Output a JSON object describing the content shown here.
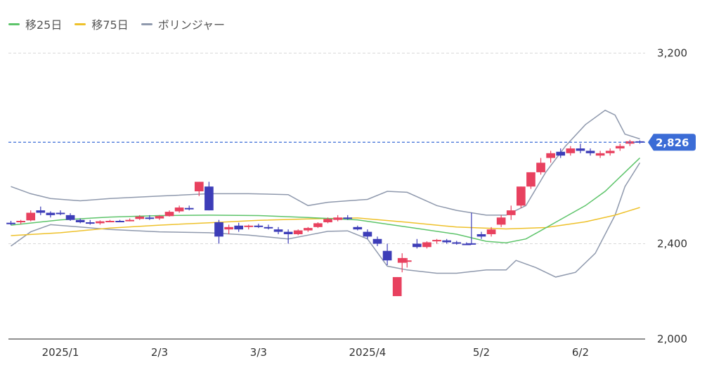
{
  "legend": [
    {
      "label": "移25日",
      "color": "#5dc46a"
    },
    {
      "label": "移75日",
      "color": "#eec12a"
    },
    {
      "label": "ボリンジャー",
      "color": "#8f99ad"
    }
  ],
  "current_price_label": "2,826",
  "colors": {
    "up": "#e8415f",
    "down": "#3d3db8",
    "price_line": "#3b6cd6",
    "grid": "#d9d9d9"
  },
  "chart_data": {
    "type": "candlestick",
    "title": "",
    "y_ticks": [
      {
        "value": 2000,
        "label": "2,000"
      },
      {
        "value": 2400,
        "label": "2,400"
      },
      {
        "value": 3200,
        "label": "3,200"
      }
    ],
    "ylim": [
      2000,
      3240
    ],
    "x_ticks": [
      {
        "index": 10,
        "label": "2025/1"
      },
      {
        "index": 30,
        "label": "2/3"
      },
      {
        "index": 50,
        "label": "3/3"
      },
      {
        "index": 72,
        "label": "2025/4"
      },
      {
        "index": 95,
        "label": "5/2"
      },
      {
        "index": 115,
        "label": "6/2"
      }
    ],
    "n_bars": 128,
    "current_price": 2826,
    "candles_sample": [
      [
        0,
        2488,
        2496,
        2478,
        2482
      ],
      [
        2,
        2492,
        2500,
        2482,
        2496
      ],
      [
        4,
        2498,
        2540,
        2494,
        2530
      ],
      [
        6,
        2540,
        2556,
        2520,
        2530
      ],
      [
        8,
        2530,
        2536,
        2510,
        2520
      ],
      [
        10,
        2530,
        2540,
        2520,
        2526
      ],
      [
        12,
        2520,
        2528,
        2496,
        2500
      ],
      [
        14,
        2500,
        2506,
        2486,
        2490
      ],
      [
        16,
        2490,
        2500,
        2480,
        2484
      ],
      [
        18,
        2486,
        2498,
        2480,
        2494
      ],
      [
        20,
        2494,
        2500,
        2490,
        2496
      ],
      [
        22,
        2496,
        2500,
        2492,
        2494
      ],
      [
        24,
        2498,
        2506,
        2494,
        2500
      ],
      [
        26,
        2504,
        2520,
        2500,
        2514
      ],
      [
        28,
        2510,
        2520,
        2500,
        2506
      ],
      [
        30,
        2506,
        2520,
        2500,
        2516
      ],
      [
        32,
        2516,
        2540,
        2514,
        2534
      ],
      [
        34,
        2536,
        2560,
        2530,
        2552
      ],
      [
        36,
        2550,
        2560,
        2540,
        2546
      ],
      [
        38,
        2620,
        2660,
        2600,
        2660
      ],
      [
        40,
        2640,
        2660,
        2540,
        2540
      ],
      [
        42,
        2490,
        2500,
        2400,
        2430
      ],
      [
        44,
        2460,
        2480,
        2440,
        2470
      ],
      [
        46,
        2476,
        2488,
        2450,
        2460
      ],
      [
        48,
        2470,
        2480,
        2460,
        2476
      ],
      [
        50,
        2476,
        2484,
        2466,
        2470
      ],
      [
        52,
        2470,
        2480,
        2460,
        2466
      ],
      [
        54,
        2460,
        2470,
        2440,
        2450
      ],
      [
        56,
        2450,
        2460,
        2400,
        2440
      ],
      [
        58,
        2440,
        2460,
        2436,
        2456
      ],
      [
        60,
        2456,
        2470,
        2450,
        2466
      ],
      [
        62,
        2470,
        2490,
        2466,
        2486
      ],
      [
        64,
        2490,
        2510,
        2486,
        2504
      ],
      [
        66,
        2500,
        2520,
        2494,
        2510
      ],
      [
        68,
        2510,
        2520,
        2500,
        2506
      ],
      [
        70,
        2470,
        2476,
        2456,
        2460
      ],
      [
        72,
        2450,
        2460,
        2420,
        2430
      ],
      [
        74,
        2420,
        2430,
        2390,
        2400
      ],
      [
        76,
        2370,
        2400,
        2310,
        2330
      ],
      [
        78,
        2180,
        2260,
        2180,
        2260
      ],
      [
        79,
        2320,
        2360,
        2280,
        2340
      ],
      [
        80,
        2330,
        2340,
        2300,
        2330
      ],
      [
        82,
        2400,
        2420,
        2380,
        2386
      ],
      [
        84,
        2386,
        2410,
        2380,
        2406
      ],
      [
        86,
        2410,
        2420,
        2400,
        2416
      ],
      [
        88,
        2414,
        2420,
        2400,
        2406
      ],
      [
        90,
        2406,
        2412,
        2396,
        2400
      ],
      [
        92,
        2400,
        2406,
        2396,
        2398
      ],
      [
        93,
        2402,
        2530,
        2396,
        2400
      ],
      [
        95,
        2440,
        2450,
        2420,
        2430
      ],
      [
        97,
        2440,
        2470,
        2430,
        2460
      ],
      [
        99,
        2480,
        2520,
        2470,
        2510
      ],
      [
        101,
        2520,
        2560,
        2500,
        2540
      ],
      [
        103,
        2560,
        2640,
        2550,
        2640
      ],
      [
        105,
        2640,
        2700,
        2630,
        2700
      ],
      [
        107,
        2700,
        2760,
        2690,
        2740
      ],
      [
        109,
        2760,
        2790,
        2740,
        2780
      ],
      [
        111,
        2786,
        2800,
        2760,
        2770
      ],
      [
        113,
        2780,
        2810,
        2770,
        2800
      ],
      [
        115,
        2800,
        2820,
        2780,
        2790
      ],
      [
        117,
        2790,
        2800,
        2770,
        2780
      ],
      [
        119,
        2770,
        2790,
        2760,
        2780
      ],
      [
        121,
        2780,
        2800,
        2770,
        2790
      ],
      [
        123,
        2800,
        2820,
        2790,
        2810
      ],
      [
        125,
        2820,
        2836,
        2810,
        2830
      ],
      [
        127,
        2830,
        2834,
        2820,
        2826
      ]
    ],
    "series": [
      {
        "name": "移25日",
        "color": "#5dc46a",
        "points": [
          [
            0,
            2478
          ],
          [
            10,
            2500
          ],
          [
            20,
            2512
          ],
          [
            30,
            2518
          ],
          [
            40,
            2520
          ],
          [
            50,
            2518
          ],
          [
            60,
            2510
          ],
          [
            70,
            2500
          ],
          [
            80,
            2470
          ],
          [
            90,
            2440
          ],
          [
            96,
            2410
          ],
          [
            100,
            2404
          ],
          [
            104,
            2420
          ],
          [
            110,
            2490
          ],
          [
            116,
            2560
          ],
          [
            120,
            2620
          ],
          [
            124,
            2700
          ],
          [
            127,
            2760
          ]
        ]
      },
      {
        "name": "移75日",
        "color": "#eec12a",
        "points": [
          [
            0,
            2434
          ],
          [
            10,
            2446
          ],
          [
            20,
            2466
          ],
          [
            30,
            2478
          ],
          [
            40,
            2488
          ],
          [
            50,
            2498
          ],
          [
            60,
            2504
          ],
          [
            70,
            2508
          ],
          [
            80,
            2490
          ],
          [
            90,
            2470
          ],
          [
            100,
            2462
          ],
          [
            108,
            2468
          ],
          [
            116,
            2492
          ],
          [
            122,
            2520
          ],
          [
            127,
            2552
          ]
        ]
      },
      {
        "name": "ボリンジャー",
        "color": "#8f99ad",
        "points_upper": [
          [
            0,
            2640
          ],
          [
            4,
            2610
          ],
          [
            8,
            2590
          ],
          [
            14,
            2580
          ],
          [
            20,
            2590
          ],
          [
            30,
            2600
          ],
          [
            40,
            2610
          ],
          [
            48,
            2610
          ],
          [
            56,
            2606
          ],
          [
            60,
            2560
          ],
          [
            64,
            2574
          ],
          [
            68,
            2580
          ],
          [
            72,
            2586
          ],
          [
            76,
            2620
          ],
          [
            80,
            2616
          ],
          [
            86,
            2560
          ],
          [
            90,
            2540
          ],
          [
            96,
            2520
          ],
          [
            100,
            2520
          ],
          [
            104,
            2560
          ],
          [
            108,
            2700
          ],
          [
            112,
            2810
          ],
          [
            116,
            2900
          ],
          [
            120,
            2960
          ],
          [
            122,
            2940
          ],
          [
            124,
            2860
          ],
          [
            127,
            2840
          ]
        ],
        "points_lower": [
          [
            0,
            2390
          ],
          [
            4,
            2450
          ],
          [
            8,
            2480
          ],
          [
            14,
            2470
          ],
          [
            20,
            2460
          ],
          [
            30,
            2450
          ],
          [
            40,
            2446
          ],
          [
            48,
            2436
          ],
          [
            56,
            2420
          ],
          [
            60,
            2436
          ],
          [
            64,
            2452
          ],
          [
            68,
            2454
          ],
          [
            72,
            2420
          ],
          [
            76,
            2306
          ],
          [
            80,
            2290
          ],
          [
            86,
            2276
          ],
          [
            90,
            2276
          ],
          [
            96,
            2290
          ],
          [
            100,
            2290
          ],
          [
            102,
            2330
          ],
          [
            106,
            2300
          ],
          [
            110,
            2260
          ],
          [
            114,
            2280
          ],
          [
            118,
            2360
          ],
          [
            122,
            2520
          ],
          [
            124,
            2640
          ],
          [
            127,
            2740
          ]
        ]
      }
    ]
  }
}
